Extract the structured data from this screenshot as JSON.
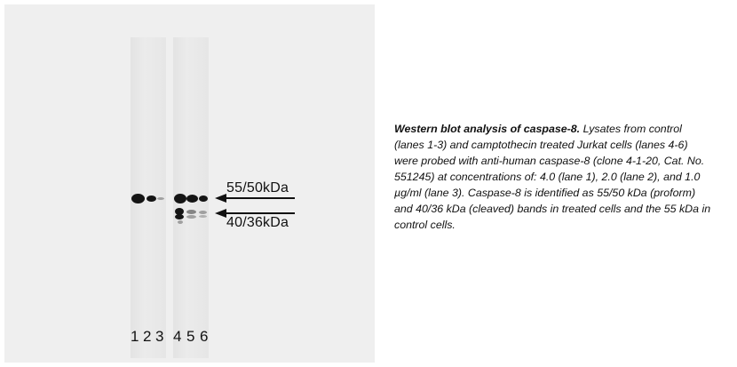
{
  "figure": {
    "marker_upper": "55/50kDa",
    "marker_lower": "40/36kDa",
    "lanes": [
      "1",
      "2",
      "3",
      "4",
      "5",
      "6"
    ]
  },
  "caption": {
    "title": "Western blot analysis of caspase-8.",
    "body": " Lysates from control (lanes 1-3) and camptothecin treated Jurkat cells (lanes 4-6) were probed with anti-human caspase-8 (clone 4-1-20, Cat. No. 551245) at concentrations of: 4.0 (lane 1), 2.0 (lane 2), and 1.0 µg/ml (lane 3). Caspase-8 is identified as 55/50 kDa (proform) and 40/36 kDa (cleaved) bands in treated cells and the 55 kDa in control cells."
  }
}
